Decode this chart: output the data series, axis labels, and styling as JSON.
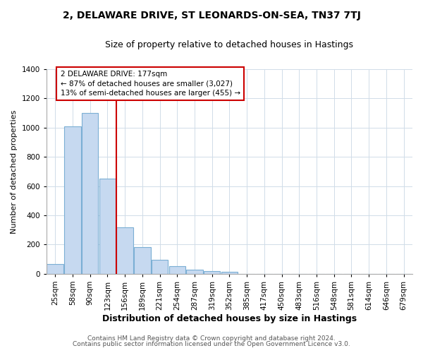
{
  "title": "2, DELAWARE DRIVE, ST LEONARDS-ON-SEA, TN37 7TJ",
  "subtitle": "Size of property relative to detached houses in Hastings",
  "xlabel": "Distribution of detached houses by size in Hastings",
  "ylabel": "Number of detached properties",
  "categories": [
    "25sqm",
    "58sqm",
    "90sqm",
    "123sqm",
    "156sqm",
    "189sqm",
    "221sqm",
    "254sqm",
    "287sqm",
    "319sqm",
    "352sqm",
    "385sqm",
    "417sqm",
    "450sqm",
    "483sqm",
    "516sqm",
    "548sqm",
    "581sqm",
    "614sqm",
    "646sqm",
    "679sqm"
  ],
  "values": [
    65,
    1010,
    1100,
    650,
    320,
    185,
    95,
    50,
    30,
    20,
    15,
    0,
    0,
    0,
    0,
    0,
    0,
    0,
    0,
    0,
    0
  ],
  "bar_color": "#c6d9f0",
  "bar_edge_color": "#7bafd4",
  "vline_x": 3.5,
  "vline_color": "#cc0000",
  "annotation_line1": "2 DELAWARE DRIVE: 177sqm",
  "annotation_line2": "← 87% of detached houses are smaller (3,027)",
  "annotation_line3": "13% of semi-detached houses are larger (455) →",
  "annotation_box_color": "#ffffff",
  "annotation_box_edge_color": "#cc0000",
  "ylim": [
    0,
    1400
  ],
  "yticks": [
    0,
    200,
    400,
    600,
    800,
    1000,
    1200,
    1400
  ],
  "footer1": "Contains HM Land Registry data © Crown copyright and database right 2024.",
  "footer2": "Contains public sector information licensed under the Open Government Licence v3.0.",
  "background_color": "#ffffff",
  "plot_background": "#ffffff",
  "grid_color": "#d0dce8",
  "title_fontsize": 10,
  "subtitle_fontsize": 9,
  "ylabel_fontsize": 8,
  "xlabel_fontsize": 9,
  "tick_fontsize": 7.5,
  "footer_fontsize": 6.5
}
